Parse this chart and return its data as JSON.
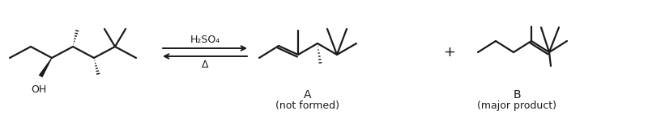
{
  "bg_color": "#ffffff",
  "line_color": "#1a1a1a",
  "line_width": 1.6,
  "fig_width": 8.0,
  "fig_height": 1.48,
  "dpi": 100,
  "label_A": "A",
  "label_A_sub": "(not formed)",
  "label_B": "B",
  "label_B_sub": "(major product)",
  "reagent_line1": "H₂SO₄",
  "reagent_line2": "Δ",
  "font_size_label": 10,
  "font_size_sub": 9,
  "font_size_reagent": 9,
  "font_size_oh": 9
}
